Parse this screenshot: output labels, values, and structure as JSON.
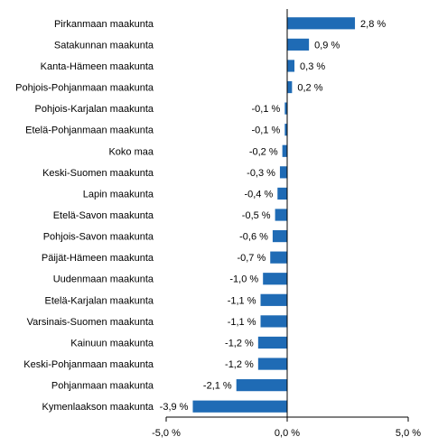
{
  "chart_data": {
    "type": "bar",
    "orientation": "horizontal",
    "categories": [
      "Pirkanmaan maakunta",
      "Satakunnan maakunta",
      "Kanta-Hämeen maakunta",
      "Pohjois-Pohjanmaan maakunta",
      "Pohjois-Karjalan maakunta",
      "Etelä-Pohjanmaan maakunta",
      "Koko maa",
      "Keski-Suomen maakunta",
      "Lapin maakunta",
      "Etelä-Savon maakunta",
      "Pohjois-Savon maakunta",
      "Päijät-Hämeen maakunta",
      "Uudenmaan maakunta",
      "Etelä-Karjalan maakunta",
      "Varsinais-Suomen maakunta",
      "Kainuun maakunta",
      "Keski-Pohjanmaan maakunta",
      "Pohjanmaan maakunta",
      "Kymenlaakson maakunta"
    ],
    "values": [
      2.8,
      0.9,
      0.3,
      0.2,
      -0.1,
      -0.1,
      -0.2,
      -0.3,
      -0.4,
      -0.5,
      -0.6,
      -0.7,
      -1.0,
      -1.1,
      -1.1,
      -1.2,
      -1.2,
      -2.1,
      -3.9
    ],
    "data_labels": [
      "2,8 %",
      "0,9 %",
      "0,3 %",
      "0,2 %",
      "-0,1 %",
      "-0,1 %",
      "-0,2 %",
      "-0,3 %",
      "-0,4 %",
      "-0,5 %",
      "-0,6 %",
      "-0,7 %",
      "-1,0 %",
      "-1,1 %",
      "-1,1 %",
      "-1,2 %",
      "-1,2 %",
      "-2,1 %",
      "-3,9 %"
    ],
    "xlim": [
      -5,
      5
    ],
    "x_ticks": [
      -5,
      0,
      5
    ],
    "x_tick_labels": [
      "-5,0 %",
      "0,0 %",
      "5,0 %"
    ],
    "title": "",
    "xlabel": "",
    "ylabel": "",
    "grid": false,
    "legend": "none",
    "bar_color": "#1f6bb5"
  }
}
